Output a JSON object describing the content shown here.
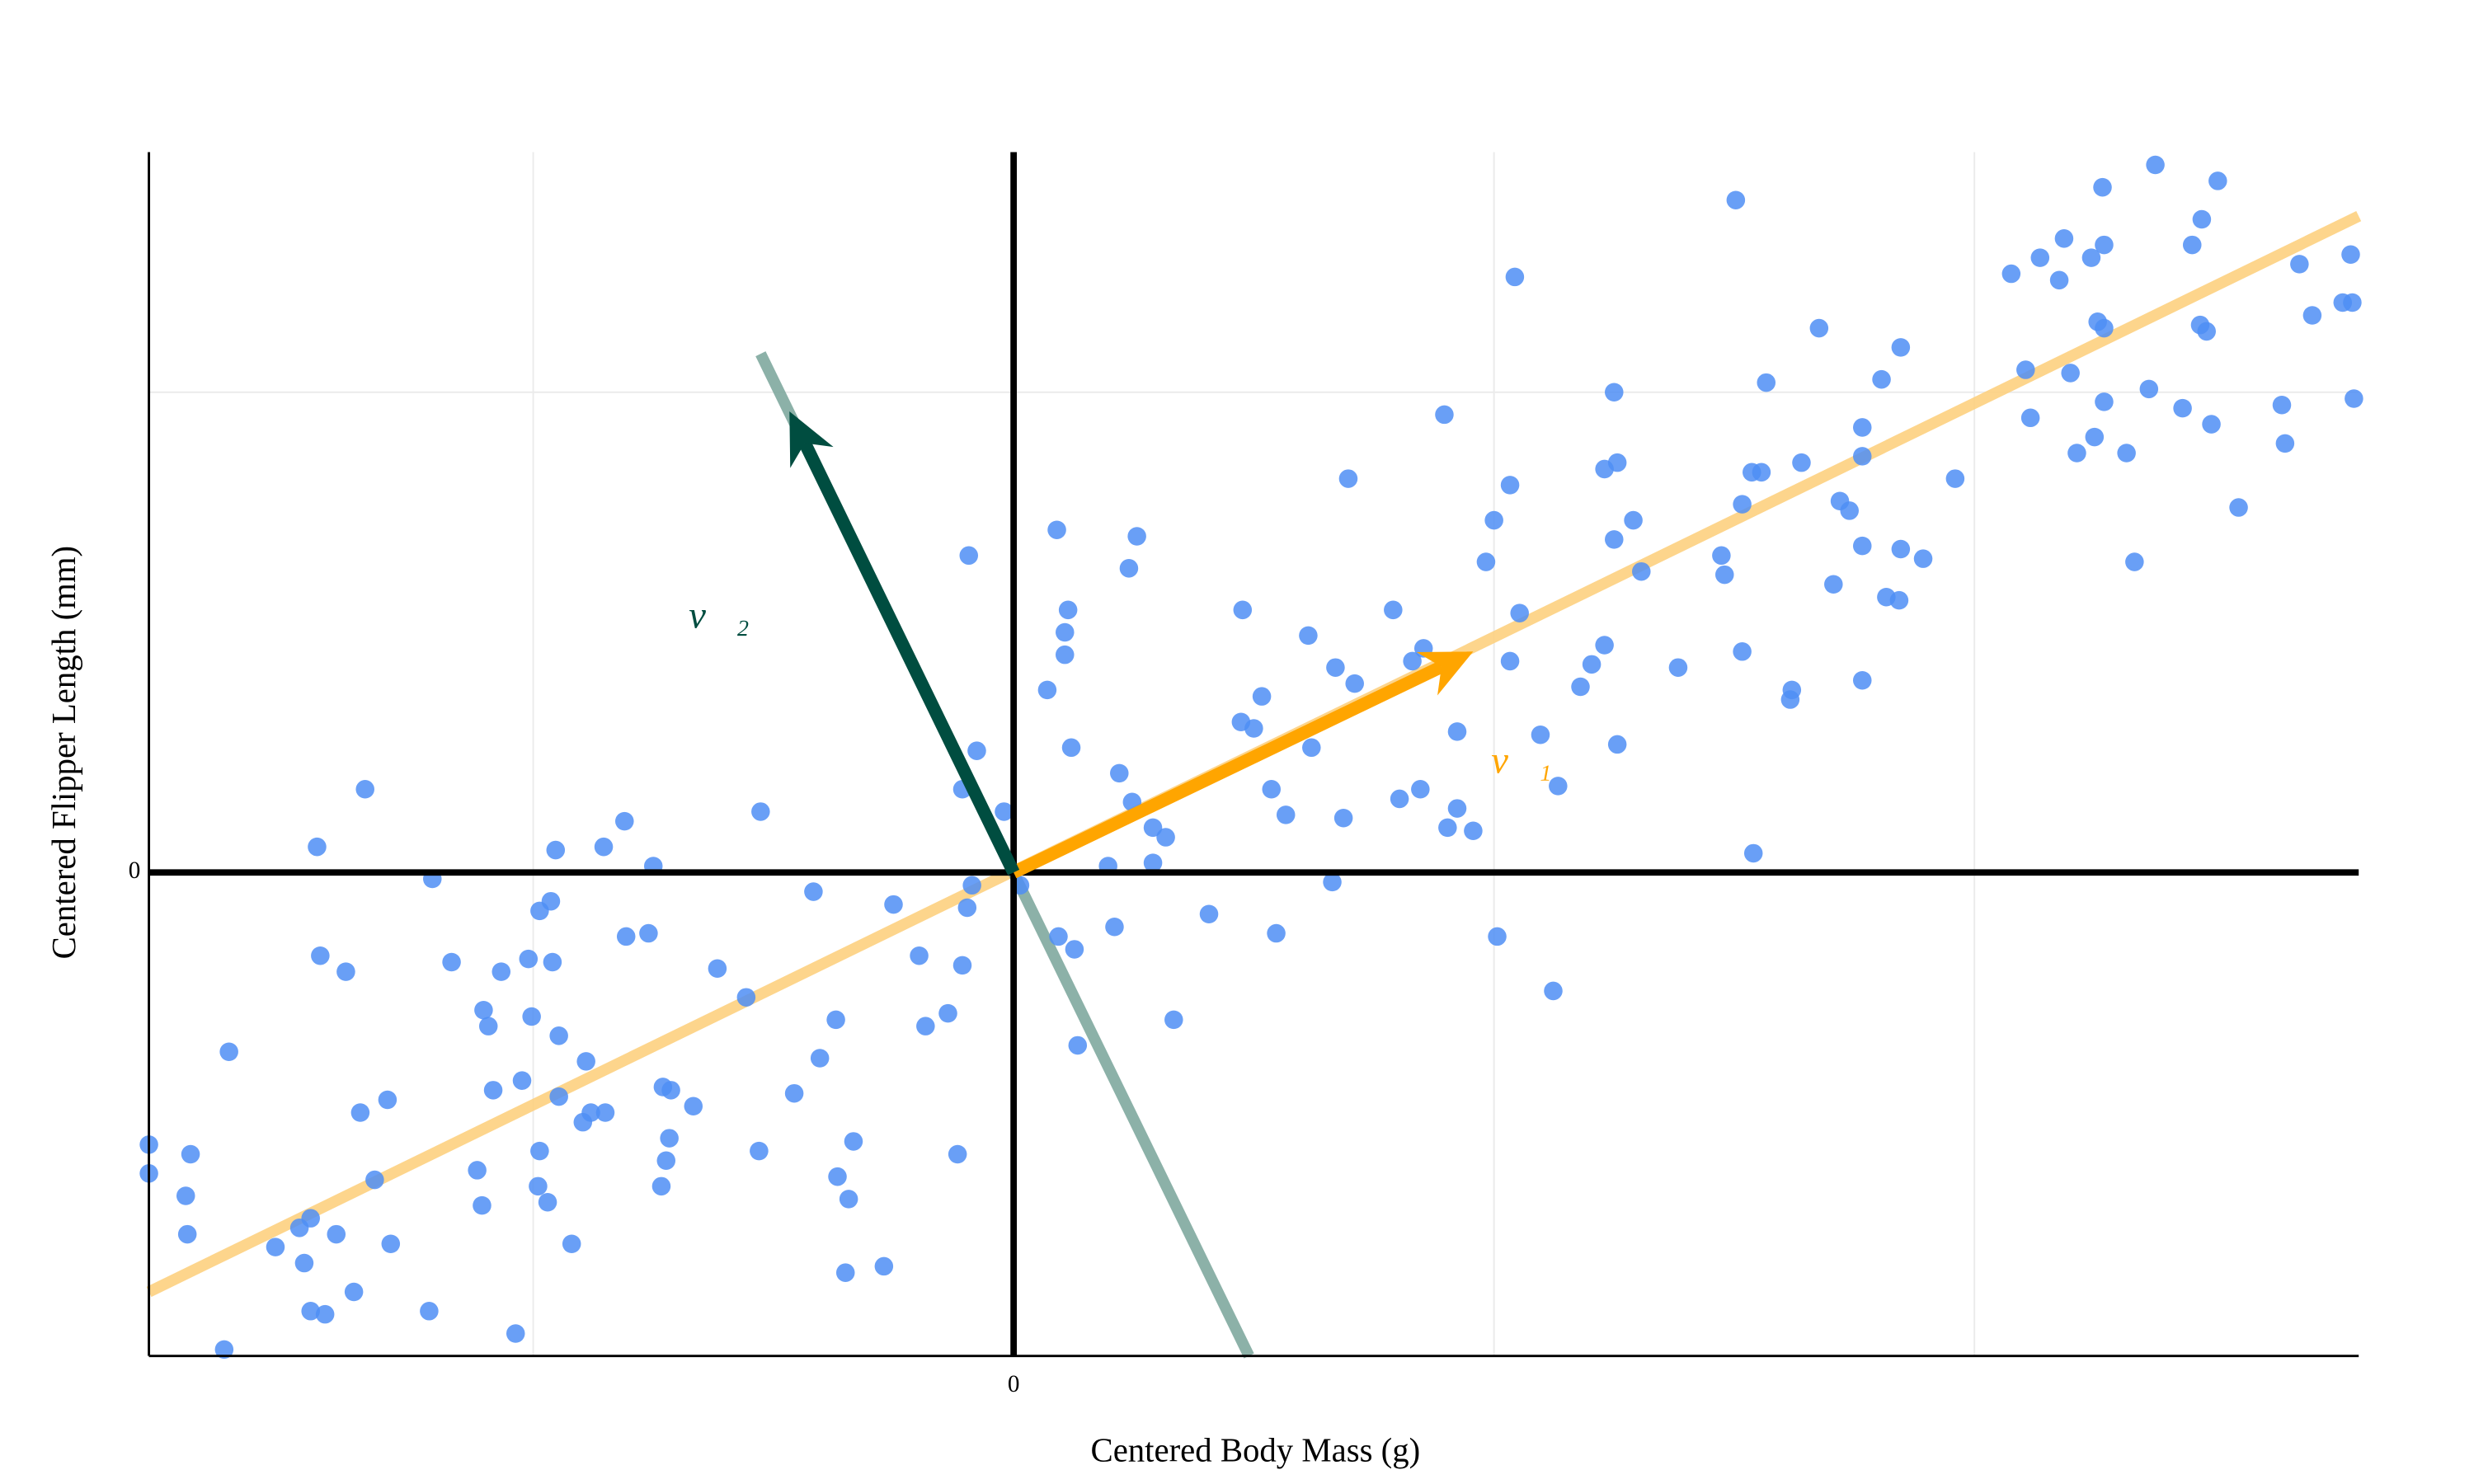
{
  "chart_data": {
    "type": "scatter",
    "x_label": "Centered Body Mass (g)",
    "y_label": "Centered Flipper Length (mm)",
    "xlim": [
      -540,
      840
    ],
    "ylim": [
      -15.1,
      22.5
    ],
    "xticks": [
      {
        "value": -300,
        "label": null
      },
      0,
      {
        "value": 300,
        "label": null
      },
      {
        "value": 600,
        "label": null
      }
    ],
    "yticks": [
      0,
      {
        "value": 15,
        "label": null
      }
    ],
    "grid": true,
    "color": "#4f8ef5",
    "x": [
      -540,
      -540,
      -514,
      -517,
      -516,
      -490,
      -493,
      -461,
      -446,
      -439,
      -443,
      -439,
      -430,
      -423,
      -412,
      -435,
      -405,
      -433,
      -417,
      -408,
      -391,
      -399,
      -389,
      -365,
      -363,
      -351,
      -331,
      -328,
      -325,
      -335,
      -332,
      -320,
      -311,
      -307,
      -303,
      -301,
      -296,
      -289,
      -286,
      -288,
      -284,
      -284,
      -296,
      -297,
      -291,
      -276,
      -267,
      -269,
      -264,
      -255,
      -256,
      -243,
      -242,
      -228,
      -225,
      -219,
      -215,
      -217,
      -220,
      -214,
      -200,
      -185,
      -167,
      -158,
      -159,
      -137,
      -125,
      -121,
      -111,
      -110,
      -103,
      -100,
      -105,
      -81,
      -75,
      -59,
      -55,
      -41,
      -35,
      -32,
      -29,
      -26,
      -28,
      -23,
      -32,
      -6,
      4,
      27,
      34,
      32,
      32,
      21,
      36,
      28,
      38,
      40,
      59,
      63,
      66,
      74,
      72,
      77,
      87,
      95,
      87,
      100,
      122,
      143,
      142,
      155,
      150,
      161,
      170,
      164,
      184,
      186,
      201,
      199,
      206,
      209,
      213,
      237,
      241,
      254,
      249,
      256,
      269,
      271,
      277,
      277,
      287,
      295,
      300,
      302,
      310,
      310,
      313,
      316,
      329,
      337,
      340,
      354,
      361,
      369,
      375,
      377,
      375,
      369,
      377,
      387,
      392,
      415,
      442,
      444,
      451,
      455,
      455,
      461,
      467,
      470,
      462,
      485,
      486,
      492,
      503,
      512,
      516,
      522,
      530,
      530,
      530,
      530,
      542,
      545,
      553,
      554,
      554,
      568,
      588,
      623,
      635,
      641,
      632,
      653,
      656,
      660,
      664,
      675,
      673,
      681,
      680,
      677,
      681,
      681,
      695,
      700,
      709,
      713,
      730,
      736,
      742,
      741,
      745,
      748,
      752,
      765,
      792,
      794,
      803,
      811,
      830,
      837,
      835,
      836
    ],
    "values": [
      -8.5,
      -9.4,
      -8.8,
      -10.1,
      -11.3,
      -5.6,
      -14.9,
      -11.7,
      -11.1,
      -10.8,
      -12.2,
      -13.7,
      -13.8,
      -11.3,
      -13.1,
      0.8,
      2.6,
      -2.6,
      -3.1,
      -7.5,
      -7.1,
      -9.6,
      -11.6,
      -13.7,
      -0.2,
      -2.8,
      -4.3,
      -4.8,
      -6.8,
      -9.3,
      -10.4,
      -3.1,
      -14.4,
      -6.5,
      -2.7,
      -4.5,
      -1.2,
      -0.9,
      0.7,
      -2.8,
      -5.1,
      -7.0,
      -8.7,
      -9.8,
      -10.3,
      -11.6,
      -5.9,
      -7.8,
      -7.5,
      -7.5,
      0.8,
      1.6,
      -2.0,
      -1.9,
      0.2,
      -6.7,
      -8.3,
      -9.0,
      -9.8,
      -6.8,
      -7.3,
      -3.0,
      -3.9,
      1.9,
      -8.7,
      -6.9,
      -0.6,
      -5.8,
      -4.6,
      -9.5,
      -10.2,
      -8.4,
      -12.5,
      -12.3,
      -1.0,
      -2.6,
      -4.8,
      -4.4,
      -8.8,
      -2.9,
      -1.1,
      -0.4,
      9.9,
      3.8,
      2.6,
      1.9,
      -0.4,
      10.7,
      8.2,
      7.5,
      6.8,
      5.7,
      3.9,
      -2.0,
      -2.4,
      -5.4,
      0.2,
      -1.7,
      3.1,
      2.2,
      9.5,
      10.5,
      1.4,
      1.1,
      0.3,
      -4.6,
      -1.3,
      8.2,
      4.7,
      5.5,
      4.5,
      2.6,
      1.8,
      -1.9,
      7.4,
      3.9,
      6.4,
      -0.3,
      1.7,
      12.3,
      5.9,
      8.2,
      2.3,
      2.6,
      6.6,
      7.0,
      14.3,
      1.4,
      2.0,
      4.4,
      1.3,
      9.7,
      11.0,
      -2.0,
      12.1,
      6.6,
      18.6,
      8.1,
      4.3,
      -3.7,
      2.7,
      5.8,
      6.5,
      7.1,
      15.0,
      12.8,
      10.4,
      12.6,
      4.0,
      11.0,
      9.4,
      6.4,
      9.9,
      9.3,
      21.0,
      6.9,
      11.5,
      12.5,
      12.5,
      15.3,
      0.6,
      5.4,
      5.7,
      12.8,
      17.0,
      9.0,
      11.6,
      11.3,
      13.9,
      13.0,
      10.2,
      6.0,
      15.4,
      8.6,
      8.5,
      16.4,
      10.1,
      9.8,
      12.3,
      18.7,
      14.2,
      19.2,
      15.7,
      18.5,
      19.8,
      15.6,
      13.1,
      13.6,
      19.2,
      19.6,
      21.4,
      17.2,
      17.0,
      14.7,
      13.1,
      9.7,
      15.1,
      22.1,
      14.5,
      19.6,
      20.4,
      17.1,
      16.9,
      14.0,
      21.6,
      11.4,
      14.6,
      13.4,
      19.0,
      17.4,
      17.8,
      14.8,
      19.3,
      17.8
    ],
    "lines": [
      {
        "x": [
          -540,
          840
        ],
        "y": [
          -13.1,
          20.5
        ],
        "color": "#fdd07f"
      },
      {
        "x": [
          -158,
          147
        ],
        "y": [
          16.2,
          -15.1
        ],
        "color": "#80a89f"
      }
    ],
    "vectors": [
      {
        "label": "v⃗₁",
        "x": 287,
        "y": 6.9,
        "color": "#ffa500"
      },
      {
        "label": "v⃗₂",
        "x": -140,
        "y": 14.4,
        "color": "#004d40"
      }
    ]
  }
}
